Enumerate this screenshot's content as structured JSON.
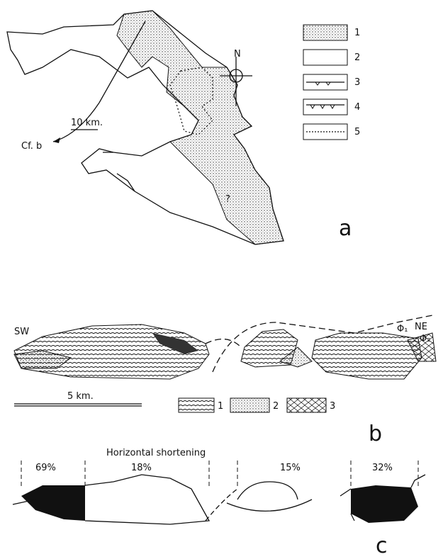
{
  "map": {
    "legend": [
      "1",
      "2",
      "3",
      "4",
      "5"
    ],
    "north": "N",
    "scale": "10 km.",
    "reference": "Cf. b",
    "unknown": "?",
    "panel": "a"
  },
  "section": {
    "left": "SW",
    "right": "NE",
    "phases": [
      "Φ₁",
      "Φ₂"
    ],
    "scale": "5 km.",
    "legend": [
      "1",
      "2",
      "3"
    ],
    "panel": "b"
  },
  "shortening": {
    "title": "Horizontal shortening",
    "values": [
      "69%",
      "18%",
      "15%",
      "32%"
    ],
    "panel": "c"
  }
}
